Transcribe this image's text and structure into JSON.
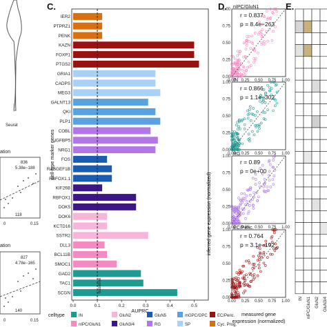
{
  "left_panel": {
    "violin_xlabel": "Seurat",
    "top_fragment": {
      "title": "ation",
      "stat1": "836",
      "stat2": "5.38e−188",
      "low_value": "118",
      "xtick": "0.15"
    },
    "bottom_fragment": {
      "title": "ation",
      "stat1": "827",
      "stat2": "4.78e−165",
      "low_value": "140",
      "xtick": "0.15"
    }
  },
  "panels": {
    "c": "C.",
    "d": "D.",
    "e": "E."
  },
  "chart_data": [
    {
      "type": "bar",
      "panel": "C.",
      "orientation": "horizontal",
      "categories": [
        "IER2",
        "PTPRZ1",
        "PENK",
        "KAZN",
        "FOXP1",
        "PTGS2",
        "GRIA1",
        "CADPS",
        "MEG3",
        "GALNT13",
        "QKI",
        "PLP1",
        "COBL",
        "IGFBP5",
        "NRG1",
        "FOS",
        "RASGEF1B",
        "RBFOX1.1",
        "KIF26B",
        "RBFOX1",
        "DOK5",
        "DOK6",
        "KCTD16",
        "SSTR2",
        "DLL3",
        "BCL11B",
        "SMOC1",
        "GAD2",
        "TAC1",
        "SCGN"
      ],
      "values": [
        0.12,
        0.12,
        0.12,
        0.5,
        0.5,
        0.52,
        0.34,
        0.34,
        0.36,
        0.31,
        0.34,
        0.36,
        0.32,
        0.35,
        0.34,
        0.14,
        0.16,
        0.16,
        0.12,
        0.26,
        0.26,
        0.14,
        0.14,
        0.31,
        0.13,
        0.14,
        0.18,
        0.28,
        0.29,
        0.43
      ],
      "celltypes": [
        "Cyc. Prog.",
        "Cyc. Prog.",
        "Cyc. Prog.",
        "EC/Peric.",
        "EC/Peric.",
        "EC/Peric.",
        "SP",
        "SP",
        "SP",
        "mGPC/OPC",
        "mGPC/OPC",
        "mGPC/OPC",
        "RG",
        "RG",
        "RG",
        "GluN5",
        "GluN5",
        "GluN5",
        "GluN3/4",
        "GluN3/4",
        "GluN3/4",
        "GluN2",
        "GluN2",
        "GluN2",
        "nIPC/GluN1",
        "nIPC/GluN1",
        "nIPC/GluN1",
        "IN",
        "IN",
        "IN"
      ],
      "baseline": 0.1,
      "baseline_label": "baseline",
      "xlabel": "AUPRC",
      "ylabel": "cell-type marker genes",
      "xlim": [
        0,
        0.55
      ],
      "xticks": [
        "0.0",
        "0.1",
        "0.2",
        "0.3",
        "0.4",
        "0.5"
      ],
      "legend": {
        "title": "celltype",
        "entries": [
          {
            "name": "IN",
            "color": "#1f9a92"
          },
          {
            "name": "nIPC/GluN1",
            "color": "#f48ac2"
          },
          {
            "name": "GluN2",
            "color": "#f7b6d9"
          },
          {
            "name": "GluN3/4",
            "color": "#3d1687"
          },
          {
            "name": "GluN5",
            "color": "#1c5cb0"
          },
          {
            "name": "RG",
            "color": "#b276e6"
          },
          {
            "name": "mGPC/OPC",
            "color": "#5aa2df"
          },
          {
            "name": "SP",
            "color": "#a9d1f7"
          },
          {
            "name": "EC/Peric.",
            "color": "#9a1111"
          },
          {
            "name": "Cyc. Prog.",
            "color": "#d9700f"
          }
        ],
        "placement": "bottom"
      },
      "grid": false
    },
    {
      "type": "scatter",
      "panel": "D.",
      "xlabel": "measured gene expression (normalized)",
      "ylabel": "inferred gene expression (normalized)",
      "xlim": [
        0,
        1
      ],
      "ylim": [
        0,
        1
      ],
      "xticks": [
        "0.00",
        "0.25",
        "0.50",
        "0.75",
        "1.00"
      ],
      "yticks": [
        "0.00",
        "0.25",
        "0.50",
        "0.75",
        "1.00"
      ],
      "diagonal": true,
      "series": [
        {
          "name": "nIPC/GluN1",
          "color": "#f48ac2",
          "r": "r = 0.837",
          "p": "p = 8.4e−263",
          "n_points": 150
        },
        {
          "name": "IN",
          "color": "#1f9a92",
          "r": "r = 0.866",
          "p": "p = 1.1e−302",
          "n_points": 150
        },
        {
          "name": "RG",
          "color": "#b276e6",
          "r": "r = 0.89",
          "p": "p = 0e+00",
          "n_points": 150
        },
        {
          "name": "EC/Peric.",
          "color": "#9a1111",
          "r": "r = 0.764",
          "p": "p = 3.1e−192",
          "n_points": 150
        }
      ]
    },
    {
      "type": "heatmap",
      "panel": "E.",
      "columns": [
        "IN",
        "nIPC/GluN1",
        "GluN2",
        "GluN3/4"
      ],
      "rows": 24,
      "highlight": [
        {
          "row": 1,
          "col": 1,
          "color": "#c7b27e"
        },
        {
          "row": 3,
          "col": 1,
          "color": "#c7b27e"
        },
        {
          "row": 1,
          "col": 0,
          "color": "#d6d6d6"
        },
        {
          "row": 3,
          "col": 0,
          "color": "#e2e2e2"
        },
        {
          "row": 6,
          "col": 2,
          "color": "#dcdcdc"
        },
        {
          "row": 9,
          "col": 2,
          "color": "#d0d0d0"
        },
        {
          "row": 12,
          "col": 1,
          "color": "#e8e8e8"
        },
        {
          "row": 16,
          "col": 2,
          "color": "#e2e2e2"
        },
        {
          "row": 18,
          "col": 3,
          "color": "#e8e8e8"
        }
      ]
    }
  ]
}
